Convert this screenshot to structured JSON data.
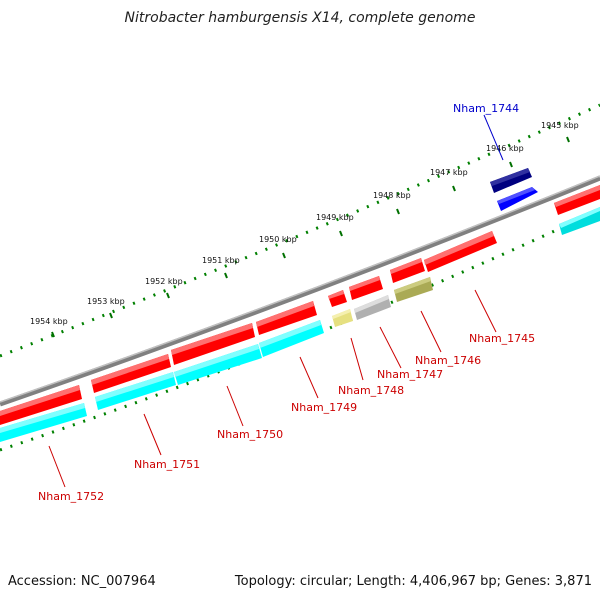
{
  "title": "Nitrobacter hamburgensis X14, complete genome",
  "footer": {
    "accession": "Accession: NC_007964",
    "topology": "Topology: circular; Length: 4,406,967 bp; Genes: 3,871"
  },
  "colors": {
    "forward_cds": "#ff0000",
    "reverse_cds": "#00ffff",
    "highlight_gene": "#000080",
    "highlight_gene_alt": "#0000ff",
    "backbone": "#808080",
    "ticks": "#008000",
    "label_forward": "#cc0000",
    "label_highlight": "#0000cc"
  },
  "kbp_ticks": [
    {
      "label": "1945 kbp"
    },
    {
      "label": "1946 kbp"
    },
    {
      "label": "1947 kbp"
    },
    {
      "label": "1948 kbp"
    },
    {
      "label": "1949 kbp"
    },
    {
      "label": "1950 kbp"
    },
    {
      "label": "1951 kbp"
    },
    {
      "label": "1952 kbp"
    },
    {
      "label": "1953 kbp"
    },
    {
      "label": "1954 kbp"
    }
  ],
  "genes": [
    {
      "name": "Nham_1744",
      "kind": "highlight"
    },
    {
      "name": "Nham_1745",
      "kind": "forward"
    },
    {
      "name": "Nham_1746",
      "kind": "forward"
    },
    {
      "name": "Nham_1747",
      "kind": "forward"
    },
    {
      "name": "Nham_1748",
      "kind": "forward"
    },
    {
      "name": "Nham_1749",
      "kind": "forward"
    },
    {
      "name": "Nham_1750",
      "kind": "forward"
    },
    {
      "name": "Nham_1751",
      "kind": "forward"
    },
    {
      "name": "Nham_1752",
      "kind": "forward"
    }
  ]
}
